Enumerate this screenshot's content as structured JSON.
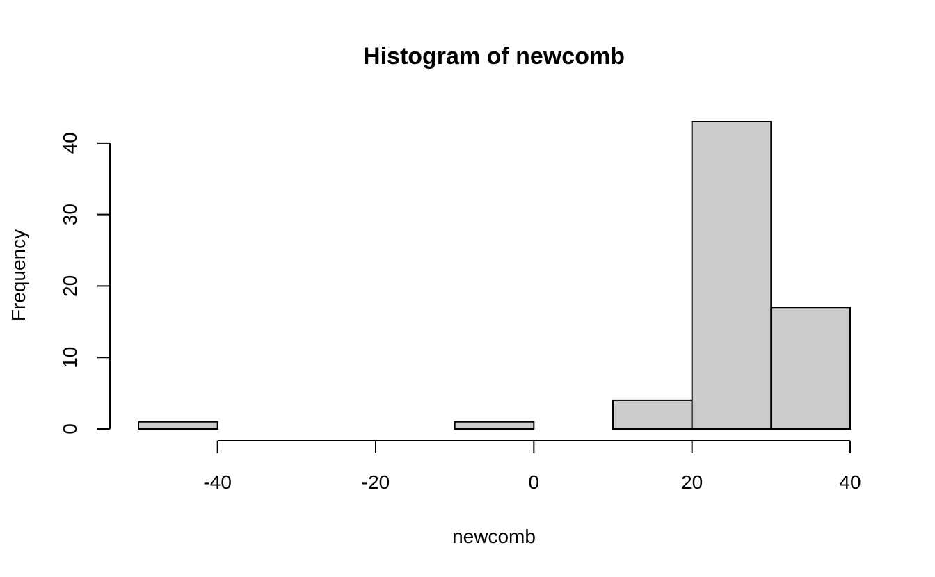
{
  "chart_data": {
    "type": "bar",
    "subtype": "histogram",
    "title": "Histogram of newcomb",
    "xlabel": "newcomb",
    "ylabel": "Frequency",
    "bins": [
      {
        "start": -50,
        "end": -40,
        "count": 1
      },
      {
        "start": -40,
        "end": -30,
        "count": 0
      },
      {
        "start": -30,
        "end": -20,
        "count": 0
      },
      {
        "start": -20,
        "end": -10,
        "count": 0
      },
      {
        "start": -10,
        "end": 0,
        "count": 1
      },
      {
        "start": 0,
        "end": 10,
        "count": 0
      },
      {
        "start": 10,
        "end": 20,
        "count": 4
      },
      {
        "start": 20,
        "end": 30,
        "count": 43
      },
      {
        "start": 30,
        "end": 40,
        "count": 17
      }
    ],
    "xticks": [
      -40,
      -20,
      0,
      20,
      40
    ],
    "yticks": [
      0,
      10,
      20,
      30,
      40
    ],
    "xlim": [
      -50,
      40
    ],
    "ylim": [
      0,
      43
    ],
    "bar_color": "#cccccc",
    "grid": false,
    "legend": "none"
  }
}
